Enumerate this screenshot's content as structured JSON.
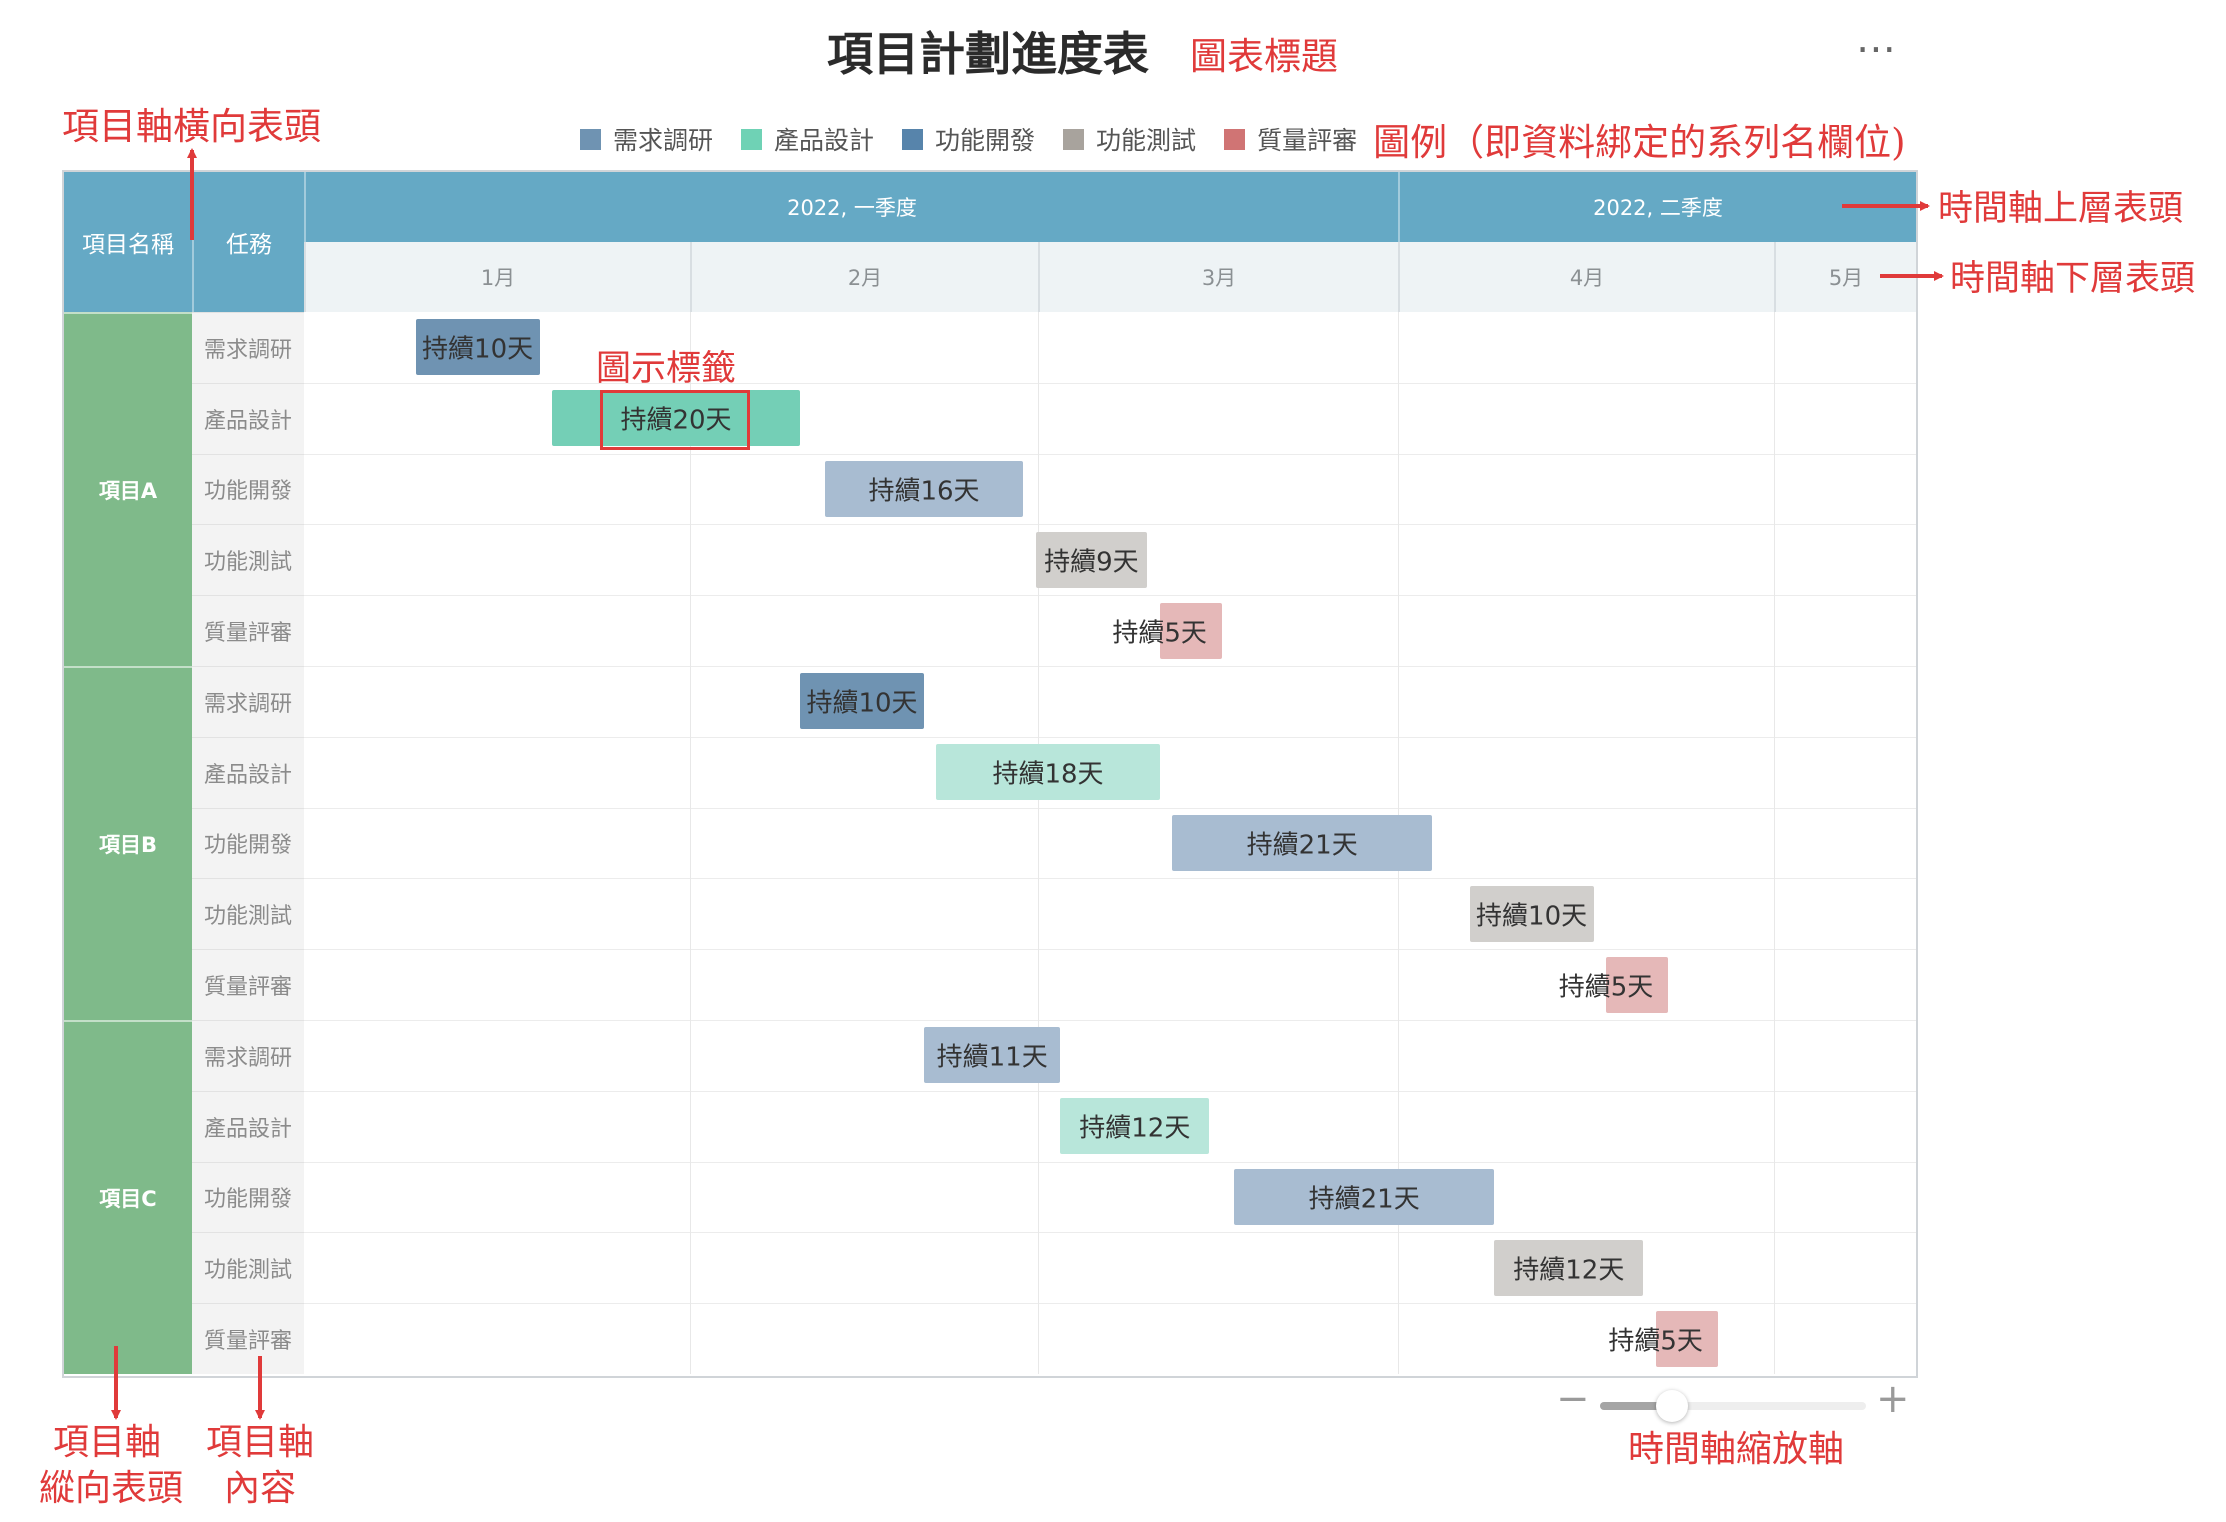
{
  "title": "項目計劃進度表",
  "more_icon": "⋯",
  "legend": [
    {
      "label": "需求調研",
      "color": "#6f93b2"
    },
    {
      "label": "產品設計",
      "color": "#6fd2b5"
    },
    {
      "label": "功能開發",
      "color": "#5784ab"
    },
    {
      "label": "功能測試",
      "color": "#a8a39d"
    },
    {
      "label": "質量評審",
      "color": "#d07474"
    }
  ],
  "header": {
    "project_col": "項目名稱",
    "task_col": "任務",
    "quarters": [
      "2022, 一季度",
      "2022, 二季度"
    ],
    "months": [
      "1月",
      "2月",
      "3月",
      "4月",
      "5月"
    ]
  },
  "projects": [
    "項目A",
    "項目B",
    "項目C"
  ],
  "tasks": [
    "需求調研",
    "產品設計",
    "功能開發",
    "功能測試",
    "質量評審"
  ],
  "chart_data": {
    "type": "gantt",
    "x_range": [
      "2022-01-01",
      "2022-05-10"
    ],
    "rows": [
      {
        "project": "項目A",
        "task": "需求調研",
        "start": "2022-01-10",
        "days": 10,
        "label": "持續10天",
        "color": "#6f93b2"
      },
      {
        "project": "項目A",
        "task": "產品設計",
        "start": "2022-01-21",
        "days": 20,
        "label": "持續20天",
        "color": "#74cfb6"
      },
      {
        "project": "項目A",
        "task": "功能開發",
        "start": "2022-02-12",
        "days": 16,
        "label": "持續16天",
        "color": "#a8bcd1"
      },
      {
        "project": "項目A",
        "task": "功能測試",
        "start": "2022-03-01",
        "days": 9,
        "label": "持續9天",
        "color": "#d1cfcc"
      },
      {
        "project": "項目A",
        "task": "質量評審",
        "start": "2022-03-11",
        "days": 5,
        "label": "持續5天",
        "color": "#e5b8b8"
      },
      {
        "project": "項目B",
        "task": "需求調研",
        "start": "2022-02-10",
        "days": 10,
        "label": "持續10天",
        "color": "#6f93b2"
      },
      {
        "project": "項目B",
        "task": "產品設計",
        "start": "2022-02-21",
        "days": 18,
        "label": "持續18天",
        "color": "#b8e6da"
      },
      {
        "project": "項目B",
        "task": "功能開發",
        "start": "2022-03-12",
        "days": 21,
        "label": "持續21天",
        "color": "#a8bcd1"
      },
      {
        "project": "項目B",
        "task": "功能測試",
        "start": "2022-04-05",
        "days": 10,
        "label": "持續10天",
        "color": "#d1cfcc"
      },
      {
        "project": "項目B",
        "task": "質量評審",
        "start": "2022-04-16",
        "days": 5,
        "label": "持續5天",
        "color": "#e5b8b8"
      },
      {
        "project": "項目C",
        "task": "需求調研",
        "start": "2022-02-20",
        "days": 11,
        "label": "持續11天",
        "color": "#a8bcd1"
      },
      {
        "project": "項目C",
        "task": "產品設計",
        "start": "2022-03-03",
        "days": 12,
        "label": "持續12天",
        "color": "#b8e6da"
      },
      {
        "project": "項目C",
        "task": "功能開發",
        "start": "2022-03-17",
        "days": 21,
        "label": "持續21天",
        "color": "#a8bcd1"
      },
      {
        "project": "項目C",
        "task": "功能測試",
        "start": "2022-04-07",
        "days": 12,
        "label": "持續12天",
        "color": "#d1cfcc"
      },
      {
        "project": "項目C",
        "task": "質量評審",
        "start": "2022-04-20",
        "days": 5,
        "label": "持續5天",
        "color": "#e5b8b8"
      }
    ]
  },
  "zoom": {
    "minus_icon": "−",
    "plus_icon": "+",
    "level": 0.27
  },
  "annotations": {
    "chart_title": "圖表標題",
    "legend": "圖例（即資料綁定的系列名欄位)",
    "proj_horizontal_header": "項目軸橫向表頭",
    "time_upper_header": "時間軸上層表頭",
    "time_lower_header": "時間軸下層表頭",
    "icon_label": "圖示標籤",
    "proj_axis_vertical": [
      "項目軸",
      "縱向表頭"
    ],
    "proj_axis_content": [
      "項目軸",
      "內容"
    ],
    "time_zoom_axis": "時間軸縮放軸"
  },
  "colors": {
    "annotation": "#e03a3a",
    "header": "#65a9c5",
    "project_cell": "#7fba8a"
  }
}
